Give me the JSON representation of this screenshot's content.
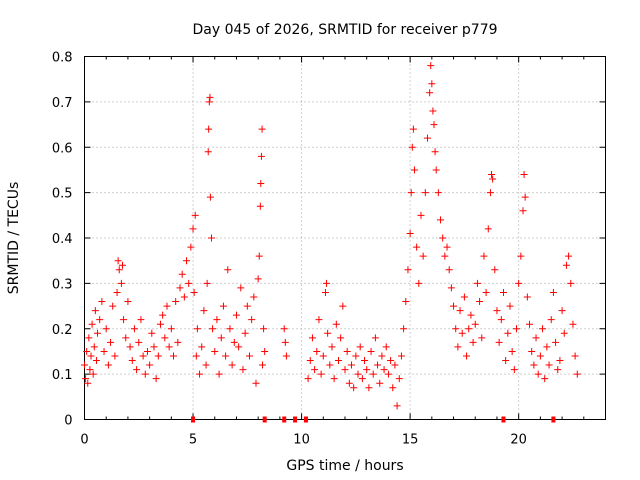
{
  "chart_data": {
    "type": "scatter",
    "title": "Day 045 of 2026, SRMTID for receiver p779",
    "xlabel": "GPS time / hours",
    "ylabel": "SRMTID / TECUs",
    "xlim": [
      0,
      24
    ],
    "ylim": [
      0,
      0.8
    ],
    "x_ticks": [
      0,
      5,
      10,
      15,
      20
    ],
    "y_ticks": [
      0,
      0.1,
      0.2,
      0.3,
      0.4,
      0.5,
      0.6,
      0.7,
      0.8
    ],
    "x_tick_labels": [
      "0",
      "5",
      "10",
      "15",
      "20"
    ],
    "y_tick_labels": [
      "0",
      "0.1",
      "0.2",
      "0.3",
      "0.4",
      "0.5",
      "0.6",
      "0.7",
      "0.8"
    ],
    "grid": true,
    "marker": "+",
    "color": "#ff0000",
    "series": [
      {
        "name": "SRMTID",
        "points": [
          [
            0.0,
            0.12
          ],
          [
            0.05,
            0.09
          ],
          [
            0.1,
            0.15
          ],
          [
            0.15,
            0.08
          ],
          [
            0.2,
            0.18
          ],
          [
            0.25,
            0.11
          ],
          [
            0.3,
            0.14
          ],
          [
            0.35,
            0.21
          ],
          [
            0.4,
            0.1
          ],
          [
            0.45,
            0.16
          ],
          [
            0.5,
            0.24
          ],
          [
            0.55,
            0.13
          ],
          [
            0.6,
            0.19
          ],
          [
            0.7,
            0.22
          ],
          [
            0.8,
            0.26
          ],
          [
            0.9,
            0.15
          ],
          [
            1.0,
            0.2
          ],
          [
            1.1,
            0.12
          ],
          [
            1.2,
            0.17
          ],
          [
            1.3,
            0.25
          ],
          [
            1.4,
            0.14
          ],
          [
            1.5,
            0.28
          ],
          [
            1.55,
            0.35
          ],
          [
            1.6,
            0.33
          ],
          [
            1.7,
            0.3
          ],
          [
            1.75,
            0.34
          ],
          [
            1.8,
            0.22
          ],
          [
            1.9,
            0.18
          ],
          [
            2.0,
            0.26
          ],
          [
            2.1,
            0.16
          ],
          [
            2.2,
            0.13
          ],
          [
            2.3,
            0.2
          ],
          [
            2.4,
            0.11
          ],
          [
            2.5,
            0.17
          ],
          [
            2.6,
            0.22
          ],
          [
            2.7,
            0.14
          ],
          [
            2.8,
            0.1
          ],
          [
            2.9,
            0.15
          ],
          [
            3.0,
            0.12
          ],
          [
            3.1,
            0.19
          ],
          [
            3.2,
            0.16
          ],
          [
            3.3,
            0.09
          ],
          [
            3.4,
            0.14
          ],
          [
            3.5,
            0.21
          ],
          [
            3.6,
            0.23
          ],
          [
            3.7,
            0.18
          ],
          [
            3.8,
            0.25
          ],
          [
            3.9,
            0.16
          ],
          [
            4.0,
            0.2
          ],
          [
            4.1,
            0.14
          ],
          [
            4.2,
            0.26
          ],
          [
            4.3,
            0.17
          ],
          [
            4.4,
            0.29
          ],
          [
            4.5,
            0.32
          ],
          [
            4.6,
            0.27
          ],
          [
            4.7,
            0.35
          ],
          [
            4.8,
            0.3
          ],
          [
            4.9,
            0.38
          ],
          [
            5.0,
            0.42
          ],
          [
            5.05,
            0.28
          ],
          [
            5.1,
            0.45
          ],
          [
            5.15,
            0.14
          ],
          [
            5.2,
            0.2
          ],
          [
            5.3,
            0.1
          ],
          [
            5.4,
            0.16
          ],
          [
            5.5,
            0.24
          ],
          [
            5.6,
            0.12
          ],
          [
            5.65,
            0.3
          ],
          [
            5.7,
            0.59
          ],
          [
            5.72,
            0.64
          ],
          [
            5.75,
            0.7
          ],
          [
            5.78,
            0.71
          ],
          [
            5.8,
            0.49
          ],
          [
            5.85,
            0.4
          ],
          [
            5.9,
            0.2
          ],
          [
            6.0,
            0.15
          ],
          [
            6.1,
            0.22
          ],
          [
            6.2,
            0.1
          ],
          [
            6.3,
            0.18
          ],
          [
            6.4,
            0.25
          ],
          [
            6.5,
            0.14
          ],
          [
            6.6,
            0.33
          ],
          [
            6.7,
            0.2
          ],
          [
            6.8,
            0.12
          ],
          [
            6.9,
            0.17
          ],
          [
            7.0,
            0.23
          ],
          [
            7.1,
            0.16
          ],
          [
            7.2,
            0.29
          ],
          [
            7.3,
            0.11
          ],
          [
            7.4,
            0.19
          ],
          [
            7.5,
            0.25
          ],
          [
            7.6,
            0.14
          ],
          [
            7.7,
            0.22
          ],
          [
            7.8,
            0.27
          ],
          [
            7.9,
            0.08
          ],
          [
            8.0,
            0.31
          ],
          [
            8.05,
            0.36
          ],
          [
            8.1,
            0.47
          ],
          [
            8.12,
            0.52
          ],
          [
            8.15,
            0.58
          ],
          [
            8.18,
            0.64
          ],
          [
            8.2,
            0.12
          ],
          [
            8.25,
            0.2
          ],
          [
            8.3,
            0.15
          ],
          [
            9.2,
            0.2
          ],
          [
            9.25,
            0.17
          ],
          [
            9.3,
            0.14
          ],
          [
            10.3,
            0.09
          ],
          [
            10.4,
            0.13
          ],
          [
            10.5,
            0.18
          ],
          [
            10.6,
            0.11
          ],
          [
            10.7,
            0.15
          ],
          [
            10.8,
            0.22
          ],
          [
            10.9,
            0.1
          ],
          [
            11.0,
            0.14
          ],
          [
            11.1,
            0.28
          ],
          [
            11.15,
            0.3
          ],
          [
            11.2,
            0.19
          ],
          [
            11.3,
            0.12
          ],
          [
            11.4,
            0.16
          ],
          [
            11.5,
            0.09
          ],
          [
            11.6,
            0.21
          ],
          [
            11.7,
            0.13
          ],
          [
            11.8,
            0.18
          ],
          [
            11.9,
            0.25
          ],
          [
            12.0,
            0.11
          ],
          [
            12.1,
            0.15
          ],
          [
            12.2,
            0.08
          ],
          [
            12.3,
            0.12
          ],
          [
            12.4,
            0.07
          ],
          [
            12.5,
            0.14
          ],
          [
            12.6,
            0.1
          ],
          [
            12.7,
            0.16
          ],
          [
            12.8,
            0.09
          ],
          [
            12.9,
            0.13
          ],
          [
            13.0,
            0.11
          ],
          [
            13.1,
            0.07
          ],
          [
            13.2,
            0.15
          ],
          [
            13.3,
            0.1
          ],
          [
            13.4,
            0.18
          ],
          [
            13.5,
            0.12
          ],
          [
            13.6,
            0.08
          ],
          [
            13.7,
            0.14
          ],
          [
            13.8,
            0.11
          ],
          [
            13.9,
            0.16
          ],
          [
            14.0,
            0.1
          ],
          [
            14.1,
            0.13
          ],
          [
            14.2,
            0.07
          ],
          [
            14.3,
            0.12
          ],
          [
            14.4,
            0.03
          ],
          [
            14.5,
            0.09
          ],
          [
            14.6,
            0.14
          ],
          [
            14.7,
            0.2
          ],
          [
            14.8,
            0.26
          ],
          [
            14.9,
            0.33
          ],
          [
            15.0,
            0.41
          ],
          [
            15.05,
            0.5
          ],
          [
            15.1,
            0.6
          ],
          [
            15.15,
            0.64
          ],
          [
            15.2,
            0.55
          ],
          [
            15.3,
            0.38
          ],
          [
            15.4,
            0.3
          ],
          [
            15.5,
            0.45
          ],
          [
            15.6,
            0.36
          ],
          [
            15.7,
            0.5
          ],
          [
            15.8,
            0.62
          ],
          [
            15.9,
            0.72
          ],
          [
            15.95,
            0.78
          ],
          [
            16.0,
            0.74
          ],
          [
            16.05,
            0.68
          ],
          [
            16.1,
            0.65
          ],
          [
            16.15,
            0.59
          ],
          [
            16.2,
            0.55
          ],
          [
            16.3,
            0.5
          ],
          [
            16.4,
            0.44
          ],
          [
            16.5,
            0.4
          ],
          [
            16.6,
            0.36
          ],
          [
            16.7,
            0.38
          ],
          [
            16.8,
            0.33
          ],
          [
            16.9,
            0.29
          ],
          [
            17.0,
            0.25
          ],
          [
            17.1,
            0.2
          ],
          [
            17.2,
            0.16
          ],
          [
            17.3,
            0.24
          ],
          [
            17.4,
            0.19
          ],
          [
            17.5,
            0.27
          ],
          [
            17.6,
            0.14
          ],
          [
            17.7,
            0.2
          ],
          [
            17.8,
            0.23
          ],
          [
            17.9,
            0.17
          ],
          [
            18.0,
            0.21
          ],
          [
            18.1,
            0.3
          ],
          [
            18.2,
            0.26
          ],
          [
            18.3,
            0.18
          ],
          [
            18.4,
            0.36
          ],
          [
            18.5,
            0.28
          ],
          [
            18.6,
            0.42
          ],
          [
            18.7,
            0.5
          ],
          [
            18.75,
            0.54
          ],
          [
            18.8,
            0.53
          ],
          [
            18.9,
            0.33
          ],
          [
            19.0,
            0.24
          ],
          [
            19.1,
            0.17
          ],
          [
            19.2,
            0.22
          ],
          [
            19.3,
            0.28
          ],
          [
            19.4,
            0.13
          ],
          [
            19.5,
            0.19
          ],
          [
            19.6,
            0.25
          ],
          [
            19.7,
            0.15
          ],
          [
            19.8,
            0.11
          ],
          [
            19.9,
            0.2
          ],
          [
            20.0,
            0.3
          ],
          [
            20.1,
            0.36
          ],
          [
            20.2,
            0.46
          ],
          [
            20.25,
            0.54
          ],
          [
            20.3,
            0.49
          ],
          [
            20.4,
            0.27
          ],
          [
            20.5,
            0.21
          ],
          [
            20.6,
            0.15
          ],
          [
            20.7,
            0.12
          ],
          [
            20.8,
            0.18
          ],
          [
            20.9,
            0.1
          ],
          [
            21.0,
            0.14
          ],
          [
            21.1,
            0.2
          ],
          [
            21.2,
            0.09
          ],
          [
            21.3,
            0.16
          ],
          [
            21.4,
            0.12
          ],
          [
            21.5,
            0.22
          ],
          [
            21.6,
            0.28
          ],
          [
            21.7,
            0.17
          ],
          [
            21.8,
            0.11
          ],
          [
            21.9,
            0.13
          ],
          [
            22.0,
            0.24
          ],
          [
            22.1,
            0.19
          ],
          [
            22.2,
            0.34
          ],
          [
            22.3,
            0.36
          ],
          [
            22.4,
            0.3
          ],
          [
            22.5,
            0.21
          ],
          [
            22.6,
            0.14
          ],
          [
            22.7,
            0.1
          ]
        ]
      }
    ],
    "baseline_markers_x": [
      5.0,
      8.3,
      9.2,
      9.7,
      10.2,
      19.3,
      21.6
    ]
  }
}
